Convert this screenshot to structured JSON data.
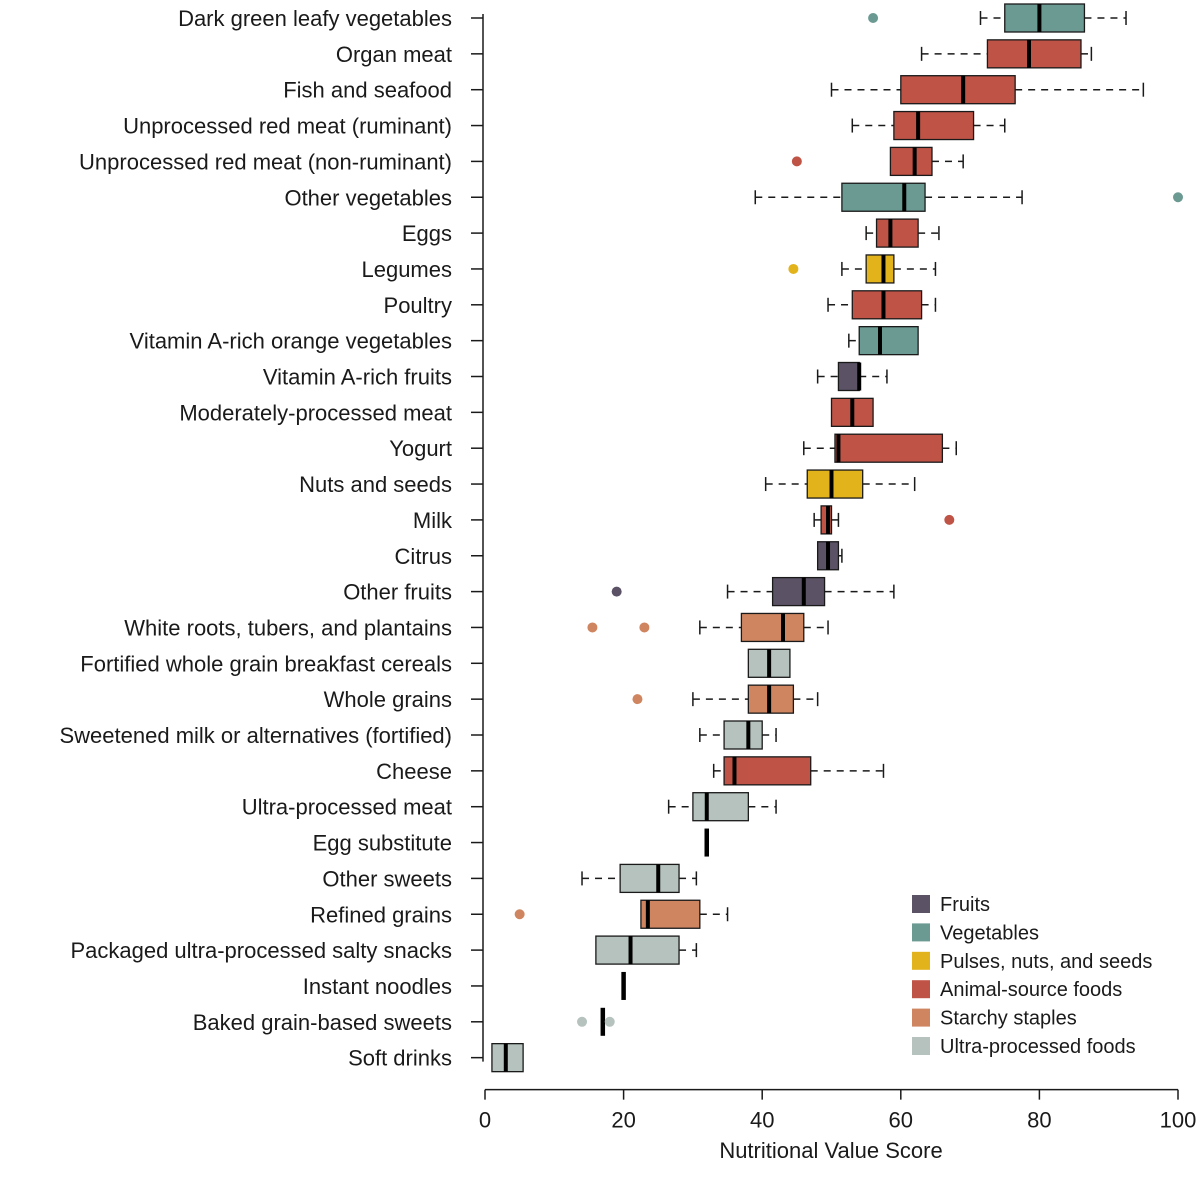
{
  "chart_data": {
    "type": "boxplot",
    "title": "",
    "xlabel": "Nutritional Value Score",
    "ylabel": "",
    "xlim": [
      0,
      100
    ],
    "xticks": [
      0,
      20,
      40,
      60,
      80,
      100
    ],
    "legend_position": "bottom-right",
    "groups": {
      "fruits": {
        "label": "Fruits",
        "color": "#5b5266"
      },
      "vegetables": {
        "label": "Vegetables",
        "color": "#6b9a93"
      },
      "pulses": {
        "label": "Pulses, nuts, and seeds",
        "color": "#e3b31c"
      },
      "animal": {
        "label": "Animal-source foods",
        "color": "#bf5346"
      },
      "starchy": {
        "label": "Starchy staples",
        "color": "#cf8660"
      },
      "ultra": {
        "label": "Ultra-processed foods",
        "color": "#b5c2bd"
      }
    },
    "legend": [
      "fruits",
      "vegetables",
      "pulses",
      "animal",
      "starchy",
      "ultra"
    ],
    "items": [
      {
        "label": "Dark green leafy vegetables",
        "group": "vegetables",
        "wmin": 71.5,
        "q1": 75,
        "median": 80,
        "q3": 86.5,
        "wmax": 92.5,
        "outliers": [
          56
        ]
      },
      {
        "label": "Organ meat",
        "group": "animal",
        "wmin": 63,
        "q1": 72.5,
        "median": 78.5,
        "q3": 86,
        "wmax": 87.5,
        "outliers": []
      },
      {
        "label": "Fish and seafood",
        "group": "animal",
        "wmin": 50,
        "q1": 60,
        "median": 69,
        "q3": 76.5,
        "wmax": 95,
        "outliers": []
      },
      {
        "label": "Unprocessed red meat (ruminant)",
        "group": "animal",
        "wmin": 53,
        "q1": 59,
        "median": 62.5,
        "q3": 70.5,
        "wmax": 75,
        "outliers": []
      },
      {
        "label": "Unprocessed red meat (non-ruminant)",
        "group": "animal",
        "wmin": 58.5,
        "q1": 58.5,
        "median": 62,
        "q3": 64.5,
        "wmax": 69,
        "outliers": [
          45
        ]
      },
      {
        "label": "Other vegetables",
        "group": "vegetables",
        "wmin": 39,
        "q1": 51.5,
        "median": 60.5,
        "q3": 63.5,
        "wmax": 77.5,
        "outliers": [
          100
        ]
      },
      {
        "label": "Eggs",
        "group": "animal",
        "wmin": 55,
        "q1": 56.5,
        "median": 58.5,
        "q3": 62.5,
        "wmax": 65.5,
        "outliers": []
      },
      {
        "label": "Legumes",
        "group": "pulses",
        "wmin": 51.5,
        "q1": 55,
        "median": 57.5,
        "q3": 59,
        "wmax": 65,
        "outliers": [
          44.5
        ]
      },
      {
        "label": "Poultry",
        "group": "animal",
        "wmin": 49.5,
        "q1": 53,
        "median": 57.5,
        "q3": 63,
        "wmax": 65,
        "outliers": []
      },
      {
        "label": "Vitamin A-rich orange vegetables",
        "group": "vegetables",
        "wmin": 52.5,
        "q1": 54,
        "median": 57,
        "q3": 62.5,
        "wmax": 62.5,
        "outliers": []
      },
      {
        "label": "Vitamin A-rich fruits",
        "group": "fruits",
        "wmin": 48,
        "q1": 51,
        "median": 54,
        "q3": 54,
        "wmax": 58,
        "outliers": []
      },
      {
        "label": "Moderately-processed meat",
        "group": "animal",
        "wmin": 50,
        "q1": 50,
        "median": 53,
        "q3": 56,
        "wmax": 56,
        "outliers": []
      },
      {
        "label": "Yogurt",
        "group": "animal",
        "wmin": 46,
        "q1": 50.5,
        "median": 51,
        "q3": 66,
        "wmax": 68,
        "outliers": []
      },
      {
        "label": "Nuts and seeds",
        "group": "pulses",
        "wmin": 40.5,
        "q1": 46.5,
        "median": 50,
        "q3": 54.5,
        "wmax": 62,
        "outliers": []
      },
      {
        "label": "Milk",
        "group": "animal",
        "wmin": 47.5,
        "q1": 48.5,
        "median": 49.5,
        "q3": 50,
        "wmax": 51,
        "outliers": [
          67
        ]
      },
      {
        "label": "Citrus",
        "group": "fruits",
        "wmin": 48,
        "q1": 48,
        "median": 49.5,
        "q3": 51,
        "wmax": 51.5,
        "outliers": []
      },
      {
        "label": "Other fruits",
        "group": "fruits",
        "wmin": 35,
        "q1": 41.5,
        "median": 46,
        "q3": 49,
        "wmax": 59,
        "outliers": [
          19
        ]
      },
      {
        "label": "White roots, tubers, and plantains",
        "group": "starchy",
        "wmin": 31,
        "q1": 37,
        "median": 43,
        "q3": 46,
        "wmax": 49.5,
        "outliers": [
          15.5,
          23
        ]
      },
      {
        "label": "Fortified whole grain breakfast cereals",
        "group": "ultra",
        "wmin": 38,
        "q1": 38,
        "median": 41,
        "q3": 44,
        "wmax": 44,
        "outliers": []
      },
      {
        "label": "Whole grains",
        "group": "starchy",
        "wmin": 30,
        "q1": 38,
        "median": 41,
        "q3": 44.5,
        "wmax": 48,
        "outliers": [
          22
        ]
      },
      {
        "label": "Sweetened milk or alternatives (fortified)",
        "group": "ultra",
        "wmin": 31,
        "q1": 34.5,
        "median": 38,
        "q3": 40,
        "wmax": 42,
        "outliers": []
      },
      {
        "label": "Cheese",
        "group": "animal",
        "wmin": 33,
        "q1": 34.5,
        "median": 36,
        "q3": 47,
        "wmax": 57.5,
        "outliers": []
      },
      {
        "label": "Ultra-processed meat",
        "group": "ultra",
        "wmin": 26.5,
        "q1": 30,
        "median": 32,
        "q3": 38,
        "wmax": 42,
        "outliers": []
      },
      {
        "label": "Egg substitute",
        "group": "ultra",
        "wmin": 32,
        "q1": 32,
        "median": 32,
        "q3": 32,
        "wmax": 32,
        "outliers": []
      },
      {
        "label": "Other sweets",
        "group": "ultra",
        "wmin": 14,
        "q1": 19.5,
        "median": 25,
        "q3": 28,
        "wmax": 30.5,
        "outliers": []
      },
      {
        "label": "Refined grains",
        "group": "starchy",
        "wmin": 22.5,
        "q1": 22.5,
        "median": 23.5,
        "q3": 31,
        "wmax": 35,
        "outliers": [
          5
        ]
      },
      {
        "label": "Packaged ultra-processed salty snacks",
        "group": "ultra",
        "wmin": 16,
        "q1": 16,
        "median": 21,
        "q3": 28,
        "wmax": 30.5,
        "outliers": []
      },
      {
        "label": "Instant noodles",
        "group": "ultra",
        "wmin": 20,
        "q1": 20,
        "median": 20,
        "q3": 20,
        "wmax": 20,
        "outliers": []
      },
      {
        "label": "Baked grain-based sweets",
        "group": "ultra",
        "wmin": 17,
        "q1": 17,
        "median": 17,
        "q3": 17,
        "wmax": 17,
        "outliers": [
          14,
          18
        ]
      },
      {
        "label": "Soft drinks",
        "group": "ultra",
        "wmin": 1,
        "q1": 1,
        "median": 3,
        "q3": 5.5,
        "wmax": 5.5,
        "outliers": []
      }
    ]
  }
}
